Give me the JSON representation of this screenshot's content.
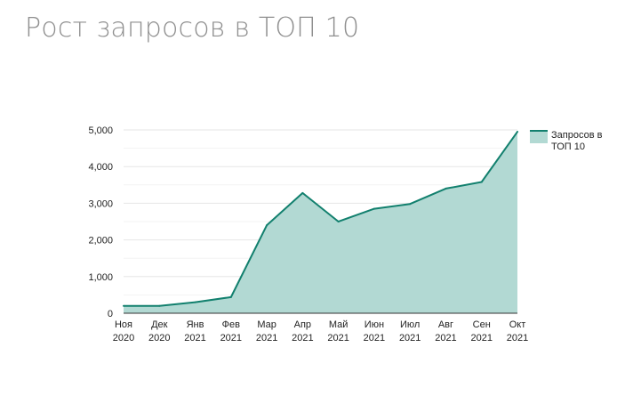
{
  "page": {
    "title": "Рост запросов в ТОП 10"
  },
  "colors": {
    "line": "#12806e",
    "area": "#b2d9d3",
    "gridline": "#e6e6e6",
    "gridline_minor": "#f3f3f3",
    "baseline": "#333333",
    "text": "#222222"
  },
  "chart_data": {
    "type": "area",
    "title": "",
    "xlabel": "",
    "ylabel": "",
    "categories": [
      [
        "Ноя",
        "2020"
      ],
      [
        "Дек",
        "2020"
      ],
      [
        "Янв",
        "2021"
      ],
      [
        "Фев",
        "2021"
      ],
      [
        "Мар",
        "2021"
      ],
      [
        "Апр",
        "2021"
      ],
      [
        "Май",
        "2021"
      ],
      [
        "Июн",
        "2021"
      ],
      [
        "Июл",
        "2021"
      ],
      [
        "Авг",
        "2021"
      ],
      [
        "Сен",
        "2021"
      ],
      [
        "Окт",
        "2021"
      ]
    ],
    "series": [
      {
        "name": "Запросов в ТОП 10",
        "values": [
          200,
          200,
          300,
          440,
          2400,
          3280,
          2500,
          2850,
          2980,
          3400,
          3580,
          4950
        ]
      }
    ],
    "ylim": [
      0,
      5000
    ],
    "yticks": [
      0,
      1000,
      2000,
      3000,
      4000,
      5000
    ],
    "ytick_labels": [
      "0",
      "1,000",
      "2,000",
      "3,000",
      "4,000",
      "5,000"
    ],
    "grid": true,
    "legend": {
      "position": "right",
      "lines": [
        "Запросов в",
        "ТОП 10"
      ]
    }
  }
}
